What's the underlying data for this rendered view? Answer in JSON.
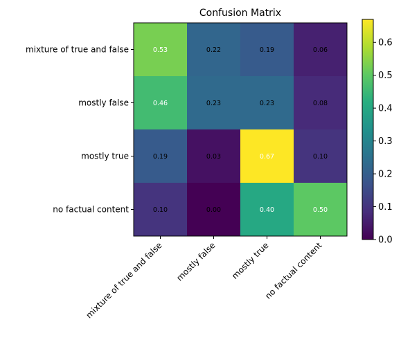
{
  "chart_data": {
    "type": "heatmap",
    "title": "Confusion Matrix",
    "row_labels": [
      "mixture of true and false",
      "mostly false",
      "mostly true",
      "no factual content"
    ],
    "col_labels": [
      "mixture of true and false",
      "mostly false",
      "mostly true",
      "no factual content"
    ],
    "values": [
      [
        0.53,
        0.22,
        0.19,
        0.06
      ],
      [
        0.46,
        0.23,
        0.23,
        0.08
      ],
      [
        0.19,
        0.03,
        0.67,
        0.1
      ],
      [
        0.1,
        0.0,
        0.4,
        0.5
      ]
    ],
    "colormap": "viridis",
    "colorbar": {
      "range": [
        0.0,
        0.67
      ],
      "ticks": [
        "0.0",
        "0.1",
        "0.2",
        "0.3",
        "0.4",
        "0.5",
        "0.6"
      ]
    },
    "text_colors": {
      "dark": "#000000",
      "light": "#ffffff"
    }
  }
}
